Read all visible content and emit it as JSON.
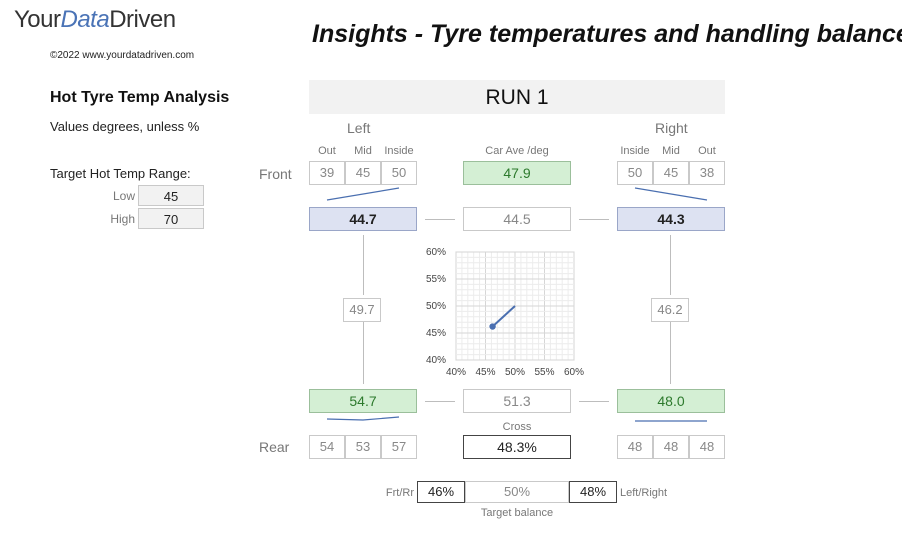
{
  "header": {
    "logo_part1": "Your",
    "logo_part2": "Data",
    "logo_part3": "Driven",
    "copyright": "©2022 www.yourdatadriven.com",
    "title": "Insights - Tyre temperatures and handling balance"
  },
  "panel": {
    "title": "Hot Tyre Temp Analysis",
    "units_note": "Values degrees, unless %",
    "target_label": "Target Hot Temp Range:",
    "low_label": "Low",
    "low_value": "45",
    "high_label": "High",
    "high_value": "70"
  },
  "run": {
    "title": "RUN 1",
    "left_label": "Left",
    "right_label": "Right",
    "front_label": "Front",
    "rear_label": "Rear",
    "col_out": "Out",
    "col_mid": "Mid",
    "col_inside": "Inside",
    "car_ave_label": "Car Ave /deg",
    "car_ave": "47.9",
    "front_left": {
      "out": "39",
      "mid": "45",
      "inside": "50",
      "avg": "44.7"
    },
    "front_right": {
      "inside": "50",
      "mid": "45",
      "out": "38",
      "avg": "44.3"
    },
    "rear_left": {
      "out": "54",
      "mid": "53",
      "inside": "57",
      "avg": "54.7"
    },
    "rear_right": {
      "inside": "48",
      "mid": "48",
      "out": "48",
      "avg": "48.0"
    },
    "front_axle_avg": "44.5",
    "rear_axle_avg": "51.3",
    "left_side_avg": "49.7",
    "right_side_avg": "46.2",
    "cross_label": "Cross",
    "cross_value": "48.3%",
    "frt_rr_label": "Frt/Rr",
    "frt_rr_value": "46%",
    "target_value": "50%",
    "left_right_value": "48%",
    "left_right_label": "Left/Right",
    "target_balance_label": "Target balance"
  },
  "chart_data": {
    "type": "line",
    "x_ticks": [
      "40%",
      "45%",
      "50%",
      "55%",
      "60%"
    ],
    "y_ticks": [
      "40%",
      "45%",
      "50%",
      "55%",
      "60%"
    ],
    "xlim": [
      40,
      60
    ],
    "ylim": [
      40,
      60
    ],
    "grid": true,
    "points": [
      {
        "x": 46.2,
        "y": 46.2,
        "marker": true
      },
      {
        "x": 50,
        "y": 50,
        "marker": false
      }
    ],
    "line_color": "#4a6fb0"
  }
}
